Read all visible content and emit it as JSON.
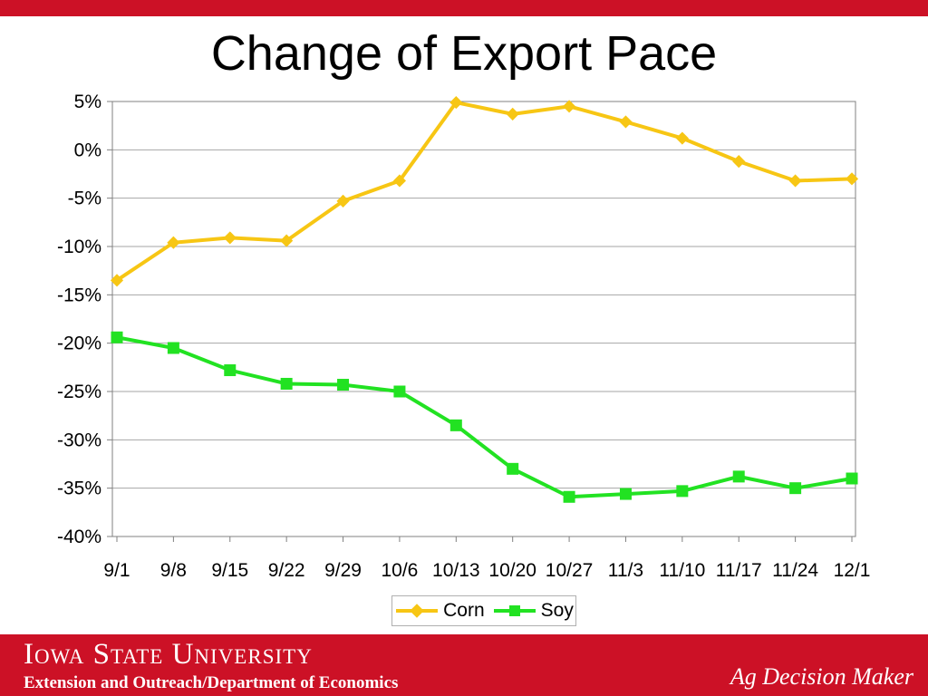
{
  "slide": {
    "title": "Change of Export Pace"
  },
  "footer": {
    "university": "Iowa State University",
    "department": "Extension and Outreach/Department of Economics",
    "product": "Ag Decision Maker"
  },
  "colors": {
    "brand_red": "#cc1126",
    "corn": "#f7c614",
    "soy": "#22e222"
  },
  "chart_data": {
    "type": "line",
    "title": "Change of Export Pace",
    "categories": [
      "9/1",
      "9/8",
      "9/15",
      "9/22",
      "9/29",
      "10/6",
      "10/13",
      "10/20",
      "10/27",
      "11/3",
      "11/10",
      "11/17",
      "11/24",
      "12/1"
    ],
    "series": [
      {
        "name": "Corn",
        "color": "#f7c614",
        "marker": "diamond",
        "values": [
          -13.5,
          -9.6,
          -9.1,
          -9.4,
          -5.3,
          -3.2,
          4.9,
          3.7,
          4.5,
          2.9,
          1.2,
          -1.2,
          -3.2,
          -3.0
        ]
      },
      {
        "name": "Soy",
        "color": "#22e222",
        "marker": "square",
        "values": [
          -19.4,
          -20.5,
          -22.8,
          -24.2,
          -24.3,
          -25.0,
          -28.5,
          -33.0,
          -35.9,
          -35.6,
          -35.3,
          -33.8,
          -35.0,
          -34.0
        ]
      }
    ],
    "ylim": [
      -40,
      5
    ],
    "yticks": [
      "5%",
      "0%",
      "-5%",
      "-10%",
      "-15%",
      "-20%",
      "-25%",
      "-30%",
      "-35%",
      "-40%"
    ],
    "ytick_values": [
      5,
      0,
      -5,
      -10,
      -15,
      -20,
      -25,
      -30,
      -35,
      -40
    ],
    "grid": true,
    "legend": "bottom"
  }
}
